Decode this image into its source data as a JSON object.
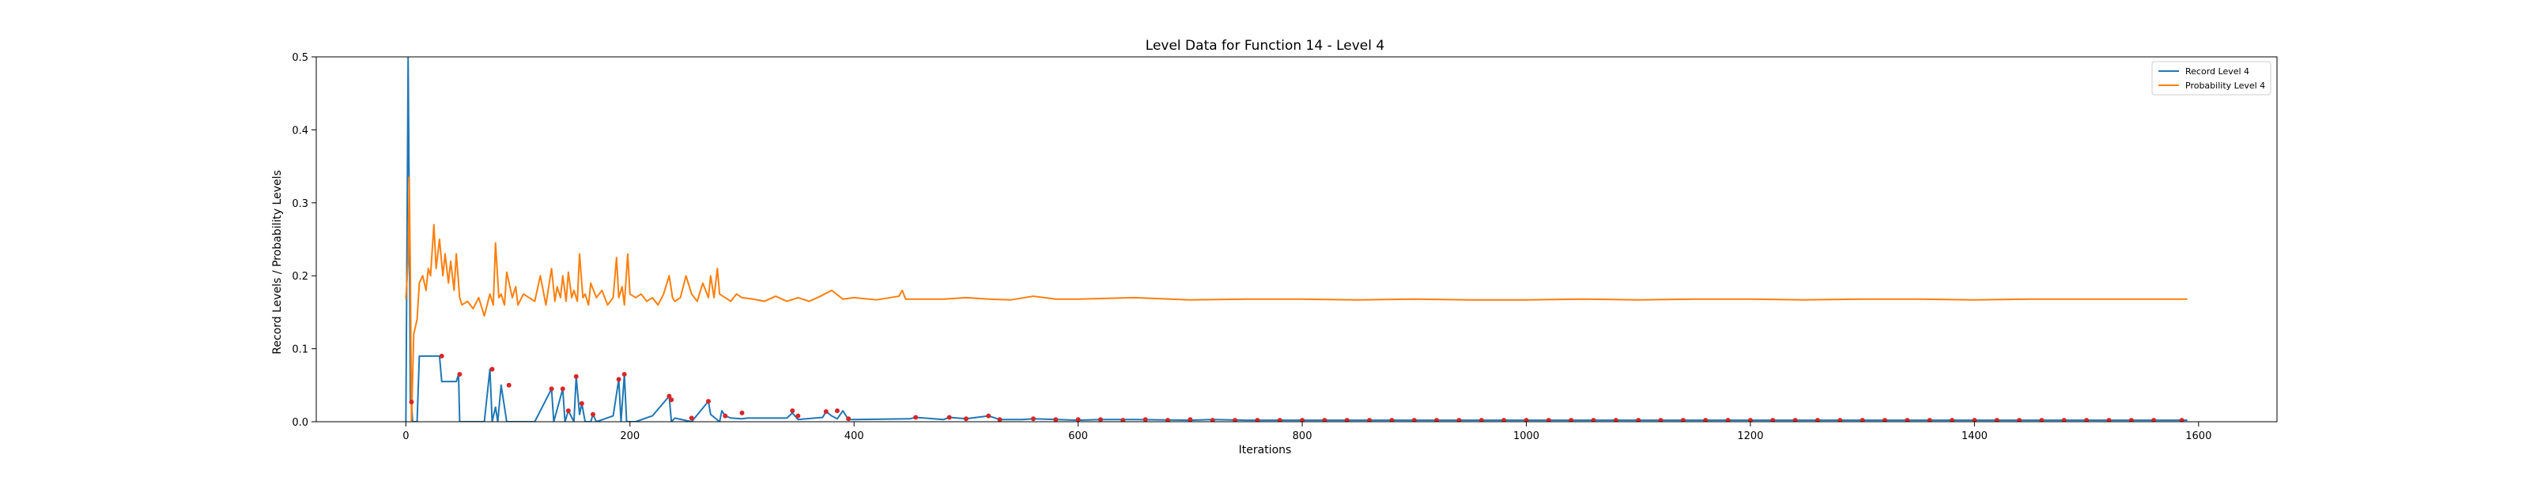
{
  "chart_data": {
    "type": "line",
    "title": "Level Data for Function 14 - Level 4",
    "xlabel": "Iterations",
    "ylabel": "Record Levels / Probability Levels",
    "xlim": [
      -80,
      1670
    ],
    "ylim": [
      0,
      0.5
    ],
    "xticks": [
      0,
      200,
      400,
      600,
      800,
      1000,
      1200,
      1400,
      1600
    ],
    "yticks": [
      0.0,
      0.1,
      0.2,
      0.3,
      0.4,
      0.5
    ],
    "xtick_labels": [
      "0",
      "200",
      "400",
      "600",
      "800",
      "1000",
      "1200",
      "1400",
      "1600"
    ],
    "ytick_labels": [
      "0.0",
      "0.1",
      "0.2",
      "0.3",
      "0.4",
      "0.5"
    ],
    "grid": false,
    "legend_position": "top-right",
    "series": [
      {
        "name": "Record Level 4",
        "color": "#1f77b4",
        "x": [
          0,
          2,
          3,
          4,
          5,
          6,
          10,
          12,
          30,
          32,
          45,
          47,
          48,
          50,
          70,
          75,
          77,
          80,
          82,
          85,
          90,
          92,
          95,
          97,
          100,
          115,
          130,
          132,
          140,
          142,
          145,
          150,
          152,
          155,
          157,
          160,
          165,
          167,
          170,
          185,
          190,
          192,
          195,
          197,
          200,
          202,
          205,
          220,
          235,
          237,
          240,
          255,
          270,
          272,
          280,
          282,
          285,
          290,
          300,
          305,
          340,
          345,
          350,
          372,
          375,
          380,
          385,
          390,
          395,
          400,
          450,
          455,
          480,
          485,
          500,
          520,
          530,
          550,
          560,
          600,
          620,
          650,
          700,
          720,
          750,
          800,
          850,
          900,
          1000,
          1100,
          1200,
          1300,
          1400,
          1500,
          1590
        ],
        "y": [
          0.0,
          0.5,
          0.3,
          0.03,
          0.027,
          0.0,
          0.0,
          0.09,
          0.09,
          0.055,
          0.055,
          0.065,
          0.0,
          0.0,
          0.0,
          0.072,
          0.0,
          0.02,
          0.0,
          0.05,
          0.0,
          0.0,
          0.0,
          0.0,
          0.0,
          0.0,
          0.045,
          0.0,
          0.045,
          0.0,
          0.015,
          0.0,
          0.062,
          0.01,
          0.025,
          0.0,
          0.0,
          0.01,
          0.0,
          0.008,
          0.058,
          0.0,
          0.065,
          0.0,
          0.0,
          0.0,
          0.0,
          0.008,
          0.035,
          0.0,
          0.005,
          0.0,
          0.028,
          0.01,
          0.0,
          0.015,
          0.008,
          0.005,
          0.004,
          0.005,
          0.005,
          0.012,
          0.003,
          0.006,
          0.014,
          0.008,
          0.004,
          0.015,
          0.003,
          0.003,
          0.004,
          0.006,
          0.003,
          0.006,
          0.004,
          0.008,
          0.003,
          0.003,
          0.004,
          0.002,
          0.003,
          0.003,
          0.002,
          0.003,
          0.002,
          0.002,
          0.002,
          0.002,
          0.002,
          0.002,
          0.002,
          0.002,
          0.002,
          0.002,
          0.002
        ]
      },
      {
        "name": "Probability Level 4",
        "color": "#ff7f0e",
        "x": [
          0,
          2,
          3,
          4,
          5,
          7,
          10,
          12,
          15,
          18,
          20,
          22,
          25,
          27,
          30,
          33,
          35,
          38,
          40,
          43,
          45,
          48,
          50,
          55,
          60,
          65,
          70,
          75,
          78,
          80,
          83,
          85,
          88,
          90,
          95,
          98,
          100,
          105,
          110,
          115,
          120,
          125,
          130,
          133,
          135,
          138,
          140,
          143,
          145,
          148,
          150,
          153,
          155,
          158,
          160,
          163,
          165,
          170,
          175,
          180,
          185,
          188,
          190,
          193,
          195,
          198,
          200,
          205,
          210,
          215,
          220,
          225,
          230,
          235,
          238,
          240,
          245,
          250,
          255,
          260,
          265,
          270,
          272,
          275,
          278,
          280,
          285,
          290,
          295,
          300,
          310,
          320,
          330,
          340,
          350,
          360,
          370,
          380,
          390,
          400,
          420,
          440,
          443,
          446,
          460,
          480,
          500,
          520,
          540,
          560,
          580,
          600,
          650,
          700,
          750,
          800,
          850,
          900,
          950,
          1000,
          1050,
          1100,
          1150,
          1200,
          1250,
          1300,
          1350,
          1400,
          1450,
          1500,
          1550,
          1590
        ],
        "y": [
          0.168,
          0.22,
          0.335,
          0.2,
          0.0,
          0.12,
          0.14,
          0.19,
          0.2,
          0.18,
          0.21,
          0.2,
          0.27,
          0.21,
          0.25,
          0.2,
          0.23,
          0.19,
          0.22,
          0.18,
          0.23,
          0.17,
          0.16,
          0.165,
          0.155,
          0.17,
          0.145,
          0.175,
          0.16,
          0.245,
          0.17,
          0.175,
          0.16,
          0.205,
          0.17,
          0.185,
          0.16,
          0.175,
          0.17,
          0.165,
          0.2,
          0.16,
          0.21,
          0.165,
          0.185,
          0.17,
          0.2,
          0.165,
          0.205,
          0.17,
          0.18,
          0.165,
          0.23,
          0.17,
          0.175,
          0.16,
          0.19,
          0.17,
          0.18,
          0.16,
          0.17,
          0.225,
          0.17,
          0.185,
          0.16,
          0.23,
          0.175,
          0.17,
          0.175,
          0.165,
          0.17,
          0.16,
          0.175,
          0.2,
          0.17,
          0.165,
          0.17,
          0.2,
          0.175,
          0.165,
          0.19,
          0.17,
          0.2,
          0.17,
          0.21,
          0.175,
          0.17,
          0.165,
          0.175,
          0.17,
          0.168,
          0.165,
          0.172,
          0.165,
          0.17,
          0.165,
          0.172,
          0.18,
          0.168,
          0.17,
          0.167,
          0.172,
          0.18,
          0.168,
          0.168,
          0.168,
          0.17,
          0.168,
          0.167,
          0.172,
          0.168,
          0.168,
          0.17,
          0.167,
          0.168,
          0.168,
          0.167,
          0.168,
          0.167,
          0.167,
          0.168,
          0.167,
          0.168,
          0.168,
          0.167,
          0.168,
          0.168,
          0.167,
          0.168,
          0.168,
          0.168,
          0.168
        ]
      }
    ],
    "markers": {
      "color": "#d62728",
      "x": [
        5,
        32,
        48,
        77,
        92,
        130,
        140,
        145,
        152,
        157,
        167,
        190,
        195,
        235,
        237,
        255,
        270,
        285,
        300,
        345,
        350,
        375,
        385,
        395,
        455,
        485,
        500,
        520,
        530,
        560,
        580,
        600,
        620,
        640,
        660,
        680,
        700,
        720,
        740,
        760,
        780,
        800,
        820,
        840,
        860,
        880,
        900,
        920,
        940,
        960,
        980,
        1000,
        1020,
        1040,
        1060,
        1080,
        1100,
        1120,
        1140,
        1160,
        1180,
        1200,
        1220,
        1240,
        1260,
        1280,
        1300,
        1320,
        1340,
        1360,
        1380,
        1400,
        1420,
        1440,
        1460,
        1480,
        1500,
        1520,
        1540,
        1560,
        1585
      ],
      "y": [
        0.027,
        0.09,
        0.065,
        0.072,
        0.05,
        0.045,
        0.045,
        0.015,
        0.062,
        0.025,
        0.01,
        0.058,
        0.065,
        0.035,
        0.03,
        0.005,
        0.028,
        0.008,
        0.012,
        0.015,
        0.008,
        0.014,
        0.015,
        0.004,
        0.006,
        0.006,
        0.004,
        0.008,
        0.003,
        0.004,
        0.003,
        0.003,
        0.003,
        0.002,
        0.003,
        0.002,
        0.003,
        0.002,
        0.002,
        0.002,
        0.002,
        0.002,
        0.002,
        0.002,
        0.002,
        0.002,
        0.002,
        0.002,
        0.002,
        0.002,
        0.002,
        0.002,
        0.002,
        0.002,
        0.002,
        0.002,
        0.002,
        0.002,
        0.002,
        0.002,
        0.002,
        0.002,
        0.002,
        0.002,
        0.002,
        0.002,
        0.002,
        0.002,
        0.002,
        0.002,
        0.002,
        0.002,
        0.002,
        0.002,
        0.002,
        0.002,
        0.002,
        0.002,
        0.002,
        0.002,
        0.002
      ]
    }
  }
}
